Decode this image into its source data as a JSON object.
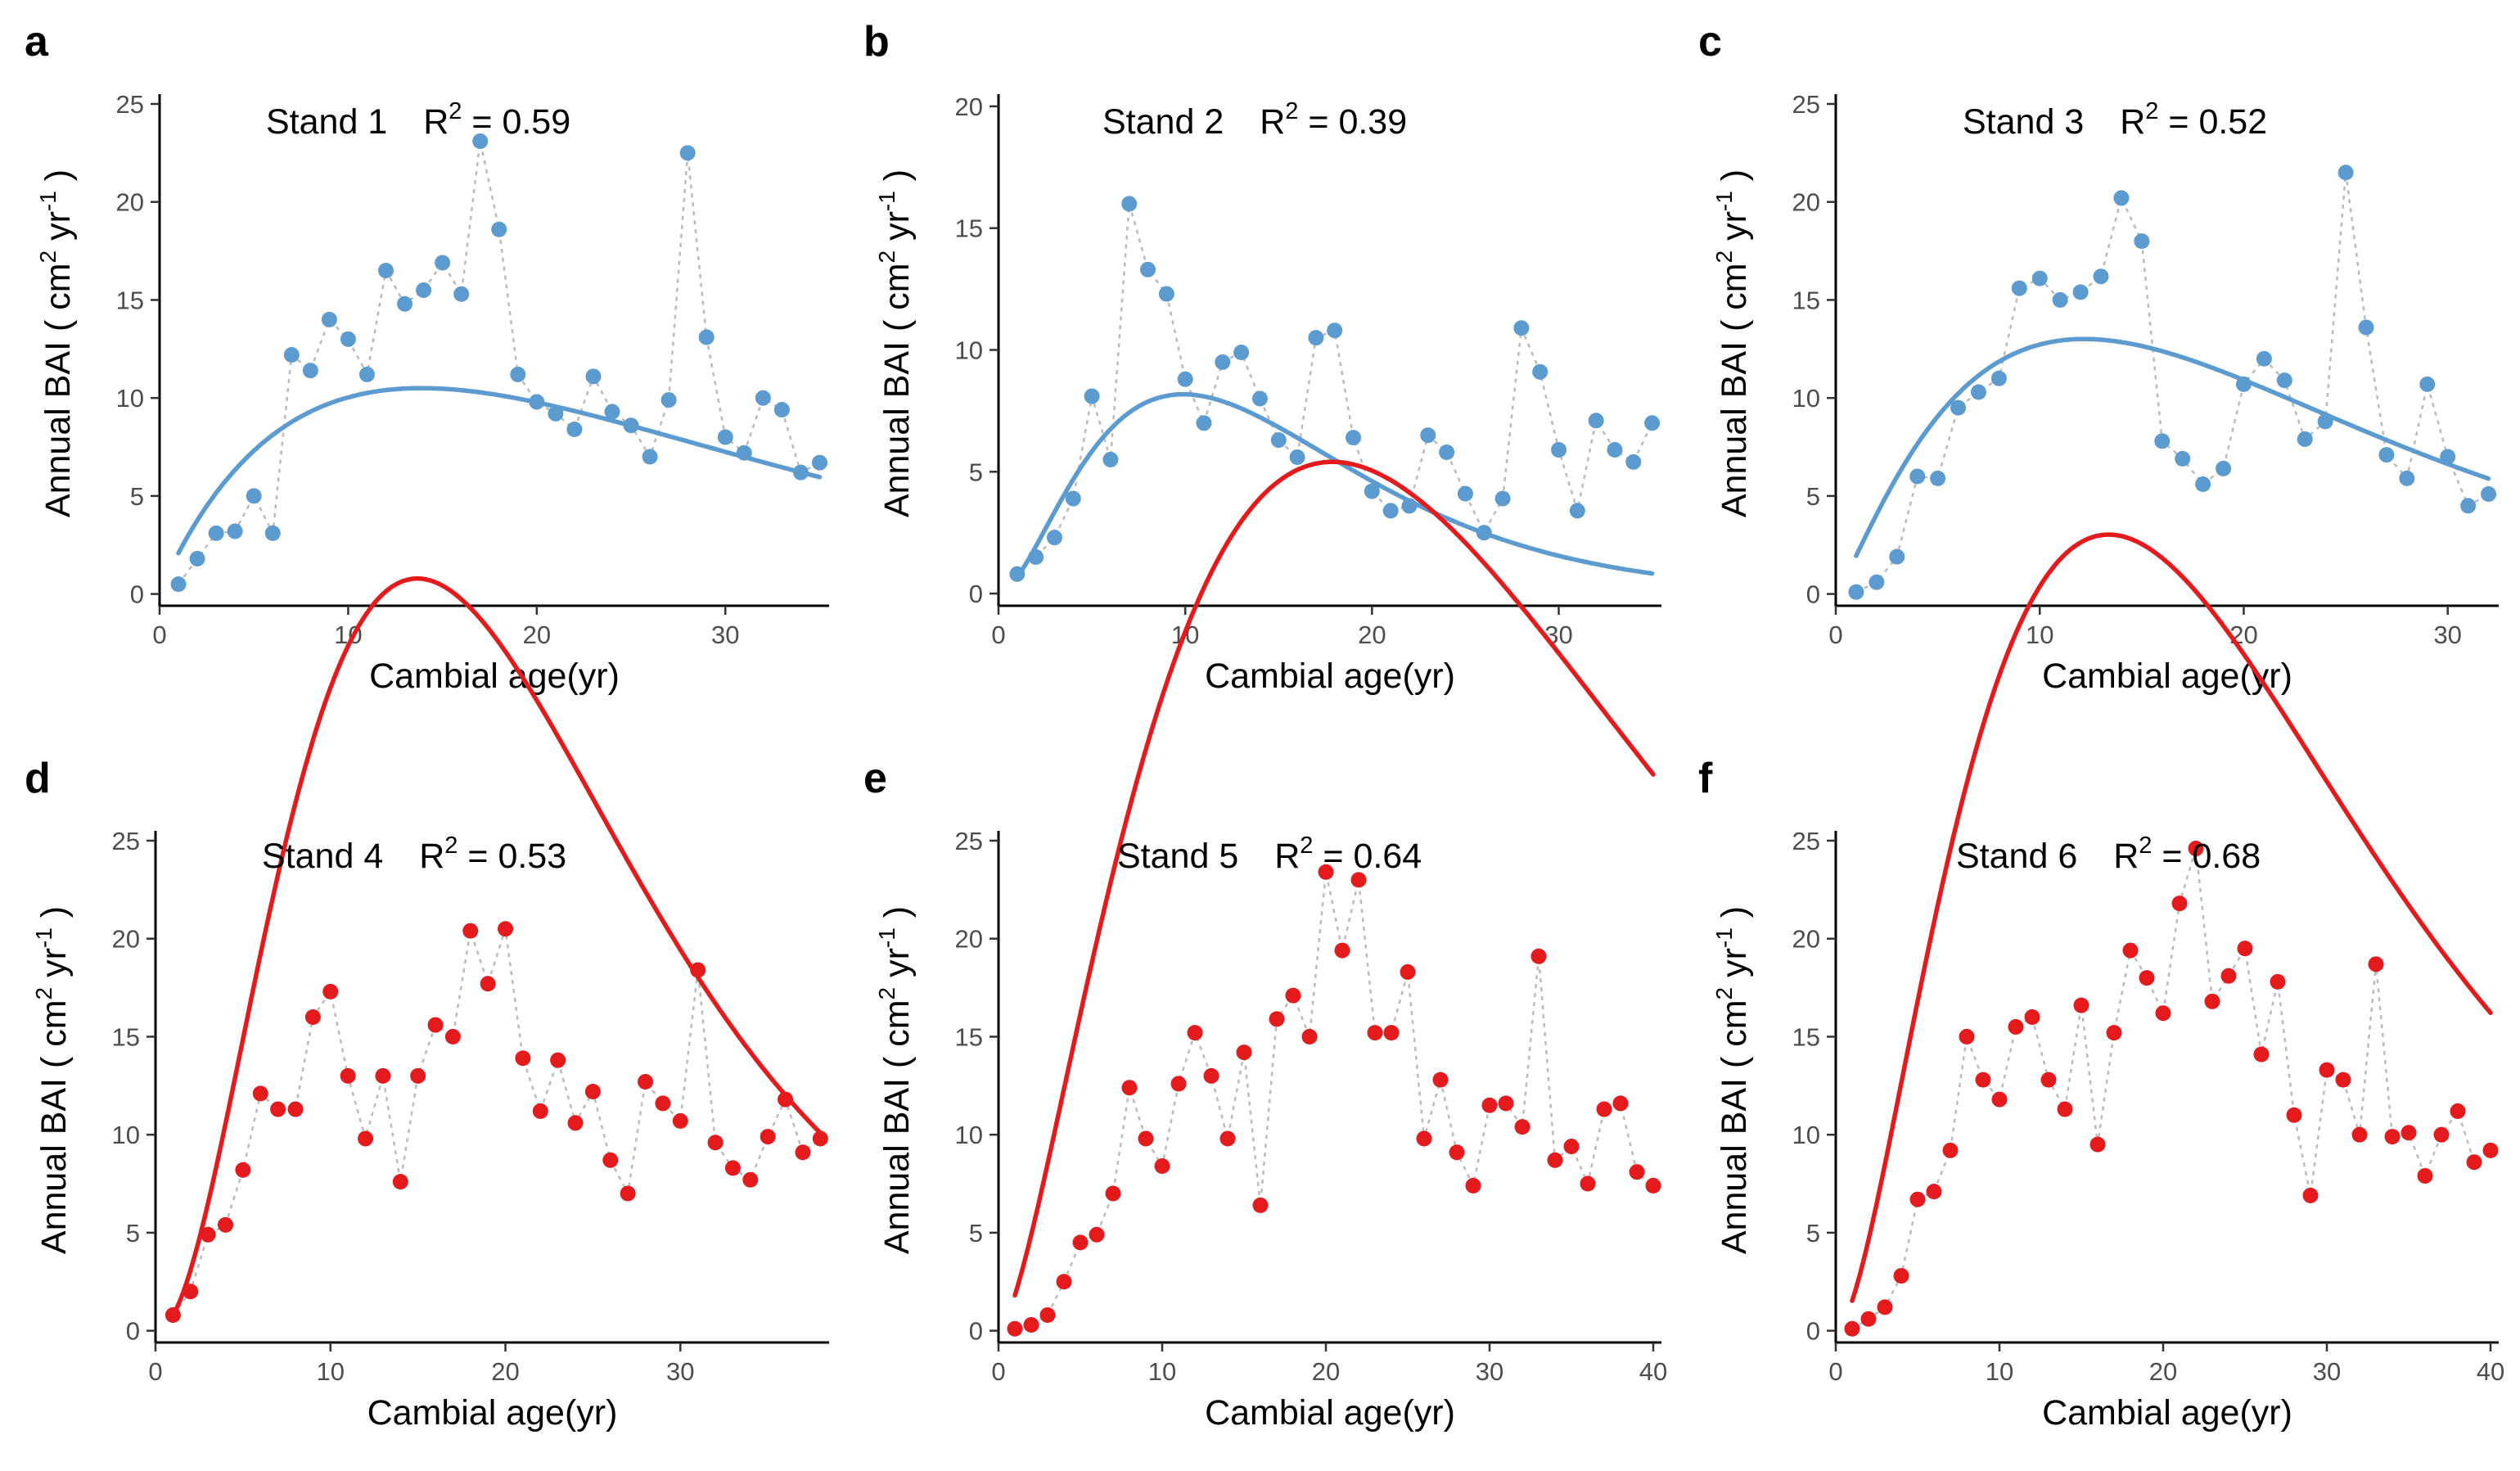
{
  "chart_data": [
    {
      "type": "scatter",
      "panel": "a",
      "title": "Stand 1",
      "r2_label": "R",
      "r2_sup": "2",
      "r2_value": " = 0.59",
      "xlabel": "Cambial age(yr)",
      "ylabel": "Annual BAI ( cm",
      "ylabel_sup1": "2",
      "ylabel_mid": " yr",
      "ylabel_sup2": "-1",
      "ylabel_end": " )",
      "color": "#5b9bd0",
      "xlim": [
        0,
        35.5
      ],
      "ylim": [
        -0.6,
        25.5
      ],
      "xticks": [
        0,
        10,
        20,
        30
      ],
      "yticks": [
        0,
        5,
        10,
        15,
        20,
        25
      ],
      "x": [
        1,
        2,
        3,
        4,
        5,
        6,
        7,
        8,
        9,
        10,
        11,
        12,
        13,
        14,
        15,
        16,
        17,
        18,
        19,
        20,
        21,
        22,
        23,
        24,
        25,
        26,
        27,
        28,
        29,
        30,
        31,
        32,
        33,
        34,
        35
      ],
      "y": [
        0.5,
        1.8,
        3.1,
        3.2,
        5.0,
        3.1,
        12.2,
        11.4,
        14.0,
        13.0,
        11.2,
        16.5,
        14.8,
        15.5,
        16.9,
        15.3,
        23.1,
        18.6,
        11.2,
        9.8,
        9.2,
        8.4,
        11.1,
        9.3,
        8.6,
        7.0,
        9.9,
        22.5,
        13.1,
        8.0,
        7.2,
        10.0,
        9.4,
        6.2,
        6.7
      ],
      "fit": {
        "a": 2.23,
        "b": 0.95,
        "c": 0.0684
      }
    },
    {
      "type": "scatter",
      "panel": "b",
      "title": "Stand 2",
      "r2_label": "R",
      "r2_sup": "2",
      "r2_value": " = 0.39",
      "xlabel": "Cambial age(yr)",
      "ylabel": "Annual BAI ( cm",
      "ylabel_sup1": "2",
      "ylabel_mid": " yr",
      "ylabel_sup2": "-1",
      "ylabel_end": " )",
      "color": "#5b9bd0",
      "xlim": [
        0,
        35.5
      ],
      "ylim": [
        -0.5,
        20.5
      ],
      "xticks": [
        0,
        10,
        20,
        30
      ],
      "yticks": [
        0,
        5,
        10,
        15,
        20
      ],
      "x": [
        1,
        2,
        3,
        4,
        5,
        6,
        7,
        8,
        9,
        10,
        11,
        12,
        13,
        14,
        15,
        16,
        17,
        18,
        19,
        20,
        21,
        22,
        23,
        24,
        25,
        26,
        27,
        28,
        29,
        30,
        31,
        32,
        33,
        34,
        35
      ],
      "y": [
        0.8,
        1.5,
        2.3,
        3.9,
        8.1,
        5.5,
        16.0,
        13.3,
        12.3,
        8.8,
        7.0,
        9.5,
        9.9,
        8.0,
        6.3,
        5.6,
        10.5,
        10.8,
        6.4,
        4.2,
        3.4,
        3.6,
        6.5,
        5.8,
        4.1,
        2.5,
        3.9,
        10.9,
        9.1,
        5.9,
        3.4,
        7.1,
        5.9,
        5.4,
        7.0
      ],
      "fit": {
        "a": 0.8,
        "b": 1.8,
        "c": 0.182
      }
    },
    {
      "type": "scatter",
      "panel": "c",
      "title": "Stand 3",
      "r2_label": "R",
      "r2_sup": "2",
      "r2_value": " = 0.52",
      "xlabel": "Cambial age(yr)",
      "ylabel": "Annual BAI ( cm",
      "ylabel_sup1": "2",
      "ylabel_mid": " yr",
      "ylabel_sup2": "-1",
      "ylabel_end": " )",
      "color": "#5b9bd0",
      "xlim": [
        0,
        32.5
      ],
      "ylim": [
        -0.6,
        25.5
      ],
      "xticks": [
        0,
        10,
        20,
        30
      ],
      "yticks": [
        0,
        5,
        10,
        15,
        20,
        25
      ],
      "x": [
        1,
        2,
        3,
        4,
        5,
        6,
        7,
        8,
        9,
        10,
        11,
        12,
        13,
        14,
        15,
        16,
        17,
        18,
        19,
        20,
        21,
        22,
        23,
        24,
        25,
        26,
        27,
        28,
        29,
        30,
        31,
        32
      ],
      "y": [
        0.1,
        0.6,
        1.9,
        6.0,
        5.9,
        9.5,
        10.3,
        11.0,
        15.6,
        16.1,
        15.0,
        15.4,
        16.2,
        20.2,
        18.0,
        7.8,
        6.9,
        5.6,
        6.4,
        10.7,
        12.0,
        10.9,
        7.9,
        8.8,
        21.5,
        13.6,
        7.1,
        5.9,
        10.7,
        7.0,
        4.5,
        5.1
      ],
      "fit": {
        "a": 2.15,
        "b": 1.2,
        "c": 0.0985
      }
    },
    {
      "type": "scatter",
      "panel": "d",
      "title": "Stand 4",
      "r2_label": "R",
      "r2_sup": "2",
      "r2_value": " = 0.53",
      "xlabel": "Cambial age(yr)",
      "ylabel": "Annual BAI ( cm",
      "ylabel_sup1": "2",
      "ylabel_mid": " yr",
      "ylabel_sup2": "-1",
      "ylabel_end": " )",
      "color": "#e41a1c",
      "xlim": [
        0,
        38.5
      ],
      "ylim": [
        -0.6,
        25.5
      ],
      "xticks": [
        0,
        10,
        20,
        30
      ],
      "yticks": [
        0,
        5,
        10,
        15,
        20,
        25
      ],
      "x": [
        1,
        2,
        3,
        4,
        5,
        6,
        7,
        8,
        9,
        10,
        11,
        12,
        13,
        14,
        15,
        16,
        17,
        18,
        19,
        20,
        21,
        22,
        23,
        24,
        25,
        26,
        27,
        28,
        29,
        30,
        31,
        32,
        33,
        34,
        35,
        36,
        37,
        38
      ],
      "y": [
        0.8,
        2.0,
        4.9,
        5.4,
        8.2,
        12.1,
        11.3,
        11.3,
        16.0,
        17.3,
        13.0,
        9.8,
        13.0,
        7.6,
        13.0,
        15.6,
        15.0,
        20.4,
        17.7,
        20.5,
        13.9,
        11.2,
        13.8,
        10.6,
        12.2,
        8.7,
        7.0,
        12.7,
        11.6,
        10.7,
        18.4,
        9.6,
        8.3,
        7.7,
        9.9,
        11.8,
        9.1,
        9.8
      ],
      "fit": {
        "a": 0.9,
        "b": 2.2,
        "c": 0.147
      }
    },
    {
      "type": "scatter",
      "panel": "e",
      "title": "Stand 5",
      "r2_label": "R",
      "r2_sup": "2",
      "r2_value": " = 0.64",
      "xlabel": "Cambial age(yr)",
      "ylabel": "Annual BAI ( cm",
      "ylabel_sup1": "2",
      "ylabel_mid": " yr",
      "ylabel_sup2": "-1",
      "ylabel_end": " )",
      "color": "#e41a1c",
      "xlim": [
        0,
        40.5
      ],
      "ylim": [
        -0.6,
        25.5
      ],
      "xticks": [
        0,
        10,
        20,
        30,
        40
      ],
      "yticks": [
        0,
        5,
        10,
        15,
        20,
        25
      ],
      "x": [
        1,
        2,
        3,
        4,
        5,
        6,
        7,
        8,
        9,
        10,
        11,
        12,
        13,
        14,
        15,
        16,
        17,
        18,
        19,
        20,
        21,
        22,
        23,
        24,
        25,
        26,
        27,
        28,
        29,
        30,
        31,
        32,
        33,
        34,
        35,
        36,
        37,
        38,
        39,
        40
      ],
      "y": [
        0.1,
        0.3,
        0.8,
        2.5,
        4.5,
        4.9,
        7.0,
        12.4,
        9.8,
        8.4,
        12.6,
        15.2,
        13.0,
        9.8,
        14.2,
        6.4,
        15.9,
        17.1,
        15.0,
        23.4,
        19.4,
        23.0,
        15.2,
        15.2,
        18.3,
        9.8,
        12.8,
        9.1,
        7.4,
        11.5,
        11.6,
        10.4,
        19.1,
        8.7,
        9.4,
        7.5,
        11.3,
        11.6,
        8.1,
        7.4
      ],
      "fit": {
        "a": 1.95,
        "b": 1.55,
        "c": 0.076
      }
    },
    {
      "type": "scatter",
      "panel": "f",
      "title": "Stand 6",
      "r2_label": "R",
      "r2_sup": "2",
      "r2_value": " = 0.68",
      "xlabel": "Cambial age(yr)",
      "ylabel": "Annual BAI ( cm",
      "ylabel_sup1": "2",
      "ylabel_mid": " yr",
      "ylabel_sup2": "-1",
      "ylabel_end": " )",
      "color": "#e41a1c",
      "xlim": [
        0,
        40.5
      ],
      "ylim": [
        -0.6,
        25.5
      ],
      "xticks": [
        0,
        10,
        20,
        30,
        40
      ],
      "yticks": [
        0,
        5,
        10,
        15,
        20,
        25
      ],
      "x": [
        1,
        2,
        3,
        4,
        5,
        6,
        7,
        8,
        9,
        10,
        11,
        12,
        13,
        14,
        15,
        16,
        17,
        18,
        19,
        20,
        21,
        22,
        23,
        24,
        25,
        26,
        27,
        28,
        29,
        30,
        31,
        32,
        33,
        34,
        35,
        36,
        37,
        38,
        39,
        40
      ],
      "y": [
        0.1,
        0.6,
        1.2,
        2.8,
        6.7,
        7.1,
        9.2,
        15.0,
        12.8,
        11.8,
        15.5,
        16.0,
        12.8,
        11.3,
        16.6,
        9.5,
        15.2,
        19.4,
        18.0,
        16.2,
        21.8,
        24.6,
        16.8,
        18.1,
        19.5,
        14.1,
        17.8,
        11.0,
        6.9,
        13.3,
        12.8,
        10.0,
        18.7,
        9.9,
        10.1,
        7.9,
        10.0,
        11.2,
        8.6,
        9.2
      ],
      "fit": {
        "a": 1.7,
        "b": 1.75,
        "c": 0.105
      }
    }
  ]
}
